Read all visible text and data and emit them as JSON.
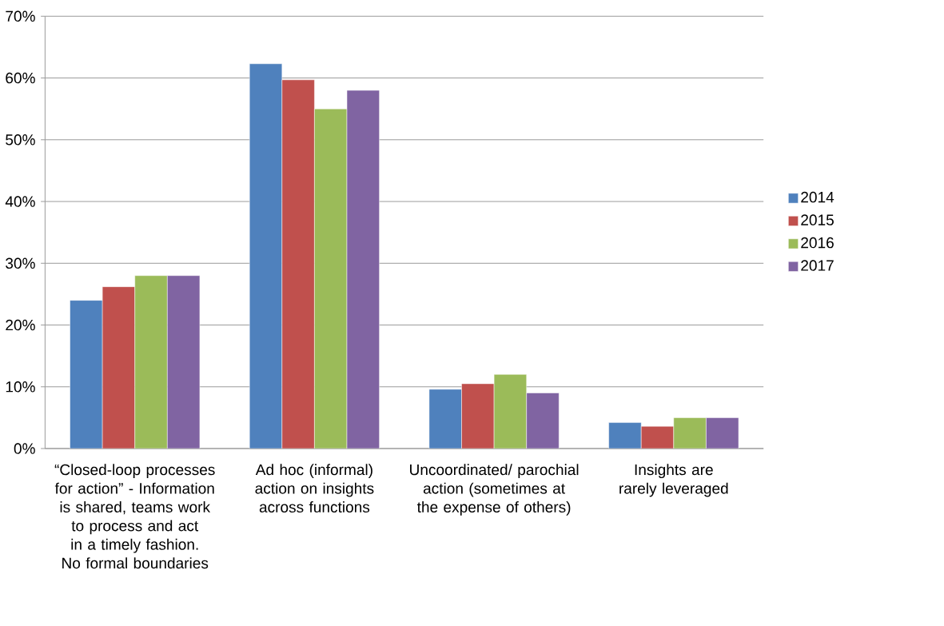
{
  "chart_data": {
    "type": "bar",
    "categories": [
      "“Closed-loop processes for action” - Information is shared, teams work to process and act in a timely fashion.  No formal boundaries",
      "Ad hoc (informal) action on insights across functions",
      "Uncoordinated/ parochial action (sometimes at the expense of others)",
      "Insights are rarely leveraged"
    ],
    "series": [
      {
        "name": "2014",
        "color": "#4f81bd",
        "values": [
          24,
          62.3,
          9.6,
          4.2
        ]
      },
      {
        "name": "2015",
        "color": "#c0504d",
        "values": [
          26.2,
          59.7,
          10.5,
          3.6
        ]
      },
      {
        "name": "2016",
        "color": "#9bbb59",
        "values": [
          28,
          55,
          12,
          5
        ]
      },
      {
        "name": "2017",
        "color": "#8064a2",
        "values": [
          28,
          58,
          9,
          5
        ]
      }
    ],
    "ylim": [
      0,
      70
    ],
    "yticks": [
      {
        "value": 0,
        "label": "0%"
      },
      {
        "value": 10,
        "label": "10%"
      },
      {
        "value": 20,
        "label": "20%"
      },
      {
        "value": 30,
        "label": "30%"
      },
      {
        "value": 40,
        "label": "40%"
      },
      {
        "value": 50,
        "label": "50%"
      },
      {
        "value": 60,
        "label": "60%"
      },
      {
        "value": 70,
        "label": "70%"
      }
    ],
    "grid": "y",
    "legend": "right"
  }
}
